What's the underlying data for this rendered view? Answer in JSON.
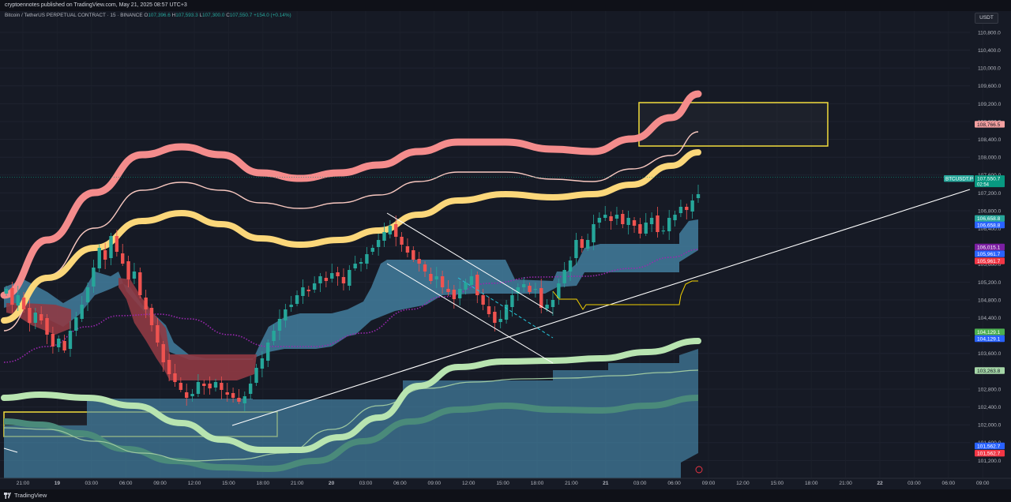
{
  "header": {
    "published": "cryptoennotes published on TradingView.com, May 21, 2025 08:57 UTC+3"
  },
  "legend": {
    "symbol": "Bitcoin / TetherUS PERPETUAL CONTRACT · 15 · BINANCE",
    "open_label": "O",
    "open": "107,396.6",
    "high_label": "H",
    "high": "107,593.3",
    "low_label": "L",
    "low": "107,300.0",
    "close_label": "C",
    "close": "107,550.7",
    "change": "+154.0 (+0.14%)"
  },
  "currency": "USDT",
  "footer": {
    "brand": "TradingView"
  },
  "chart_data": {
    "type": "candlestick",
    "symbol": "BTCUSDT.P",
    "timeframe": "15",
    "y_ticks": [
      101200,
      101600,
      102000,
      102400,
      102800,
      103200,
      103600,
      104000,
      104400,
      104800,
      105200,
      105600,
      106000,
      106400,
      106800,
      107200,
      107600,
      108000,
      108400,
      108800,
      109200,
      109600,
      110000,
      110400,
      110800
    ],
    "y_tick_labels": [
      "101,200.0",
      "101,600.0",
      "102,000.0",
      "102,400.0",
      "102,800.0",
      "103,200.0",
      "103,600.0",
      "104,000.0",
      "104,400.0",
      "104,800.0",
      "105,200.0",
      "105,600.0",
      "106,000.0",
      "106,400.0",
      "106,800.0",
      "107,200.0",
      "107,600.0",
      "108,000.0",
      "108,400.0",
      "108,800.0",
      "109,200.0",
      "109,600.0",
      "110,000.0",
      "110,400.0",
      "110,800.0"
    ],
    "x_ticks": [
      "21:00",
      "19",
      "03:00",
      "06:00",
      "09:00",
      "12:00",
      "15:00",
      "18:00",
      "21:00",
      "20",
      "03:00",
      "06:00",
      "09:00",
      "12:00",
      "15:00",
      "18:00",
      "21:00",
      "21",
      "03:00",
      "06:00",
      "09:00",
      "12:00",
      "15:00",
      "18:00",
      "21:00",
      "22",
      "03:00",
      "06:00",
      "09:00"
    ],
    "price_tags": [
      {
        "value": 108766.5,
        "label": "108,766.5",
        "color": "#f4a0a0",
        "text_color": "#131722"
      },
      {
        "value": 107550.7,
        "label": "107,550.7",
        "sub": "02:54",
        "color": "#089981",
        "text_color": "#ffffff"
      },
      {
        "value": 106658.8,
        "label": "106,658.8",
        "color": "#26a69a",
        "text_color": "#ffffff"
      },
      {
        "value": 106658.8,
        "label": "106,658.8",
        "color": "#2962ff",
        "text_color": "#ffffff"
      },
      {
        "value": 106015.1,
        "label": "106,015.1",
        "color": "#7b1fa2",
        "text_color": "#ffffff"
      },
      {
        "value": 105961.7,
        "label": "105,961.7",
        "color": "#2962ff",
        "text_color": "#ffffff"
      },
      {
        "value": 105961.7,
        "label": "105,961.7",
        "color": "#f23645",
        "text_color": "#ffffff"
      },
      {
        "value": 104129.1,
        "label": "104,129.1",
        "color": "#4caf50",
        "text_color": "#ffffff"
      },
      {
        "value": 104129.1,
        "label": "104,129.1",
        "color": "#2962ff",
        "text_color": "#ffffff"
      },
      {
        "value": 103263.8,
        "label": "103,263.8",
        "color": "#a5d6a7",
        "text_color": "#131722"
      },
      {
        "value": 101562.7,
        "label": "101,562.7",
        "color": "#2962ff",
        "text_color": "#ffffff"
      },
      {
        "value": 101562.7,
        "label": "101,562.7",
        "color": "#f23645",
        "text_color": "#ffffff"
      }
    ],
    "symbol_tag": "BTCUSDT.P",
    "colors": {
      "up": "#26a69a",
      "down": "#ef5350",
      "upper_band": "#f48c8c",
      "upper_band_mid": "#f8c8c0",
      "yellow_band": "#fbd77a",
      "lower_band": "#b8e4b0",
      "lower_band_dark": "#4a8a7a",
      "cloud": "#4a8fb3",
      "red_cloud": "#8f3a44",
      "zone": "#f2dc3c",
      "ma_purple": "#9c27b0"
    }
  }
}
